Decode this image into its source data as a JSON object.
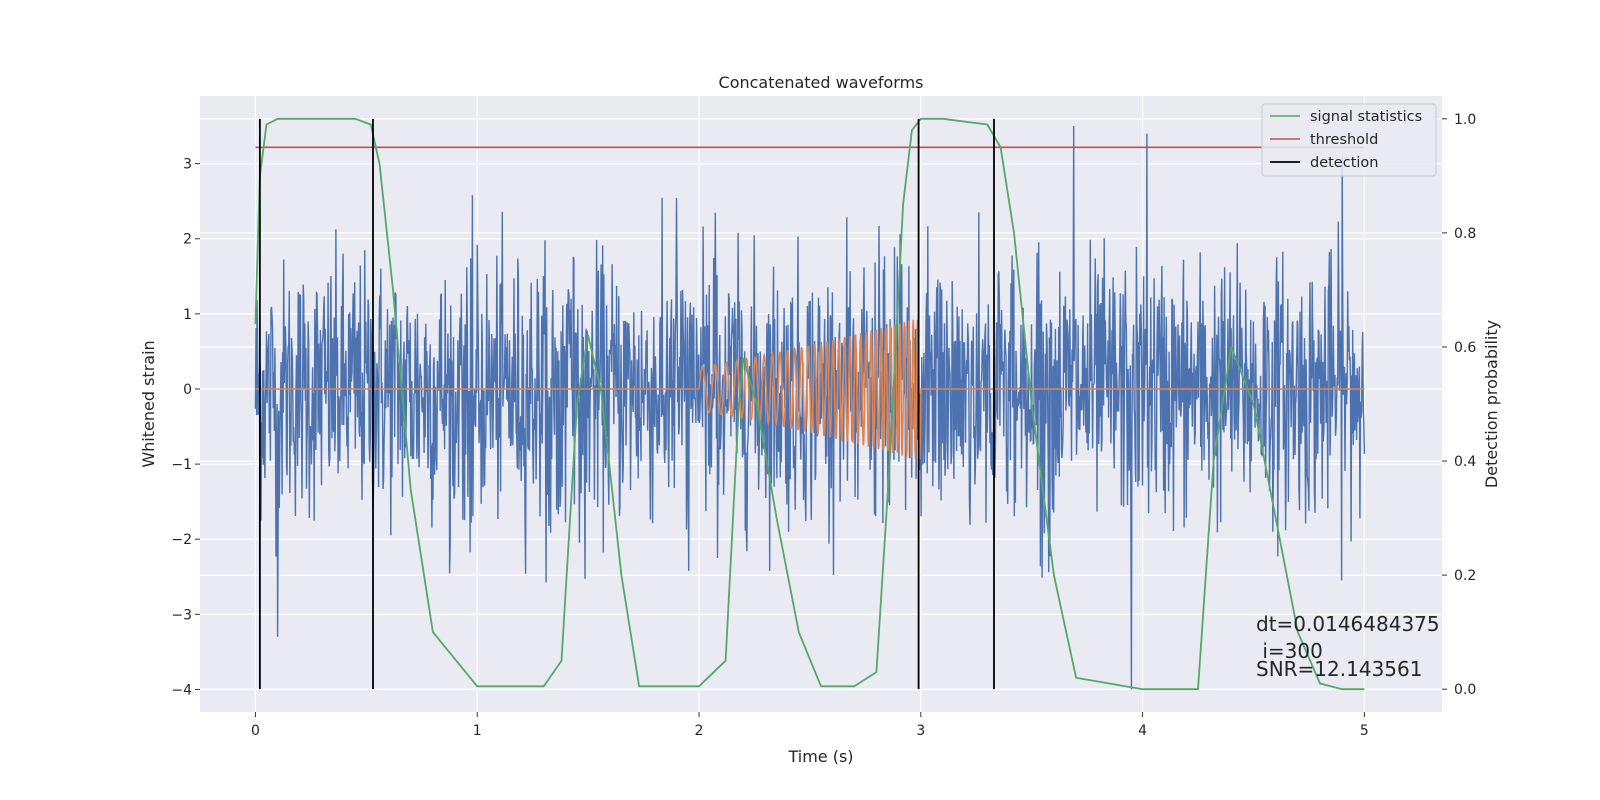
{
  "chart_data": {
    "type": "line",
    "title": "Concatenated waveforms",
    "xlabel": "Time (s)",
    "ylabel": "Whitened strain",
    "ylabel_right": "Detection probability",
    "xlim": [
      -0.25,
      5.35
    ],
    "ylim": [
      -4.3,
      3.9
    ],
    "ylim_right": [
      -0.04,
      1.04
    ],
    "x_ticks": [
      0,
      1,
      2,
      3,
      4,
      5
    ],
    "y_ticks": [
      -4,
      -3,
      -2,
      -1,
      0,
      1,
      2,
      3
    ],
    "y_ticks_right": [
      0.0,
      0.2,
      0.4,
      0.6,
      0.8,
      1.0
    ],
    "grid": true,
    "legend_position": "top-right",
    "colors": {
      "strain": "#4c72b0",
      "template": "#dd8452",
      "statistic": "#55a868",
      "threshold": "#c44e52",
      "detection": "#000000",
      "background": "#eaeaf2"
    },
    "series": [
      {
        "name": "",
        "axis": "left",
        "kind": "noise",
        "x_range": [
          0,
          5
        ],
        "noise_std": 0.85,
        "typical_range": [
          -2.6,
          2.6
        ],
        "extremes": [
          [
            0.1,
            -3.3
          ],
          [
            3.69,
            3.5
          ],
          [
            3.95,
            -4.0
          ],
          [
            4.02,
            3.4
          ],
          [
            4.9,
            3.1
          ]
        ]
      },
      {
        "name": "",
        "axis": "left",
        "kind": "chirp",
        "x_range": [
          0,
          5
        ],
        "chirp_start": 2.0,
        "chirp_end": 3.0,
        "amplitude_start": 0.3,
        "amplitude_end": 0.95,
        "baseline": 0
      },
      {
        "name": "signal statistics",
        "axis": "right",
        "x": [
          0.0,
          0.02,
          0.05,
          0.1,
          0.2,
          0.45,
          0.52,
          0.56,
          0.62,
          0.7,
          0.8,
          1.0,
          1.3,
          1.38,
          1.45,
          1.5,
          1.56,
          1.65,
          1.73,
          2.0,
          2.12,
          2.18,
          2.2,
          2.26,
          2.35,
          2.45,
          2.55,
          2.7,
          2.8,
          2.86,
          2.92,
          2.96,
          3.0,
          3.1,
          3.3,
          3.36,
          3.42,
          3.5,
          3.6,
          3.7,
          4.0,
          4.25,
          4.32,
          4.4,
          4.5,
          4.6,
          4.7,
          4.8,
          4.9,
          5.0
        ],
        "values": [
          0.64,
          0.9,
          0.99,
          1.0,
          1.0,
          1.0,
          0.99,
          0.92,
          0.7,
          0.35,
          0.1,
          0.005,
          0.005,
          0.05,
          0.5,
          0.62,
          0.52,
          0.2,
          0.005,
          0.005,
          0.05,
          0.5,
          0.58,
          0.5,
          0.3,
          0.1,
          0.005,
          0.005,
          0.03,
          0.4,
          0.85,
          0.98,
          1.0,
          1.0,
          0.99,
          0.95,
          0.8,
          0.5,
          0.2,
          0.02,
          0.0,
          0.0,
          0.4,
          0.6,
          0.5,
          0.3,
          0.1,
          0.01,
          0.0,
          0.0
        ]
      },
      {
        "name": "threshold",
        "axis": "right",
        "x": [
          0,
          5
        ],
        "values": [
          0.95,
          0.95
        ]
      }
    ],
    "detection_lines": {
      "name": "detection",
      "x": [
        0.02,
        0.53,
        2.99,
        3.33
      ]
    },
    "annotations": [
      "dt=0.0146484375",
      " i=300",
      "SNR=12.143561"
    ]
  }
}
